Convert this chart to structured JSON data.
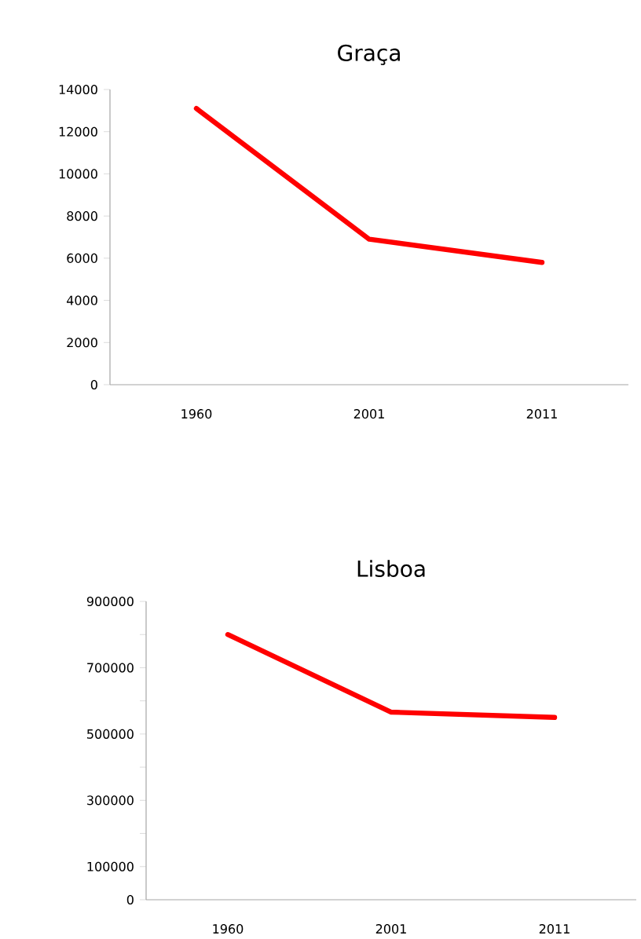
{
  "chart_data": [
    {
      "type": "line",
      "title": "Graça",
      "categories": [
        "1960",
        "2001",
        "2011"
      ],
      "series": [
        {
          "color": "#ff0000",
          "values": [
            13100,
            6900,
            5800
          ]
        }
      ],
      "ylim": [
        0,
        14000
      ],
      "yticks": [
        0,
        2000,
        4000,
        6000,
        8000,
        10000,
        12000,
        14000
      ]
    },
    {
      "type": "line",
      "title": "Lisboa",
      "categories": [
        "1960",
        "2001",
        "2011"
      ],
      "series": [
        {
          "color": "#ff0000",
          "values": [
            800000,
            566000,
            550000
          ]
        }
      ],
      "ylim": [
        0,
        900000
      ],
      "yticks": [
        0,
        100000,
        {
          "value": 200000,
          "label": null
        },
        300000,
        {
          "value": 400000,
          "label": null
        },
        500000,
        {
          "value": 600000,
          "label": null
        },
        700000,
        {
          "value": 800000,
          "label": null
        },
        900000
      ]
    }
  ]
}
